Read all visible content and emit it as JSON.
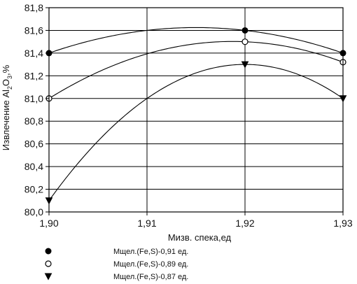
{
  "chart_data": {
    "type": "line",
    "x": [
      1.9,
      1.92,
      1.93
    ],
    "xlabel": "Мизв. спека,ед",
    "ylabel_parts": [
      "Извлечение Al",
      "2",
      "O",
      "3",
      ",%"
    ],
    "xlim": [
      1.9,
      1.93
    ],
    "ylim": [
      80.0,
      81.8
    ],
    "x_ticks": [
      "1,90",
      "1,91",
      "1,92",
      "1,93"
    ],
    "y_ticks": [
      "80,0",
      "80,2",
      "80,4",
      "80,6",
      "80,8",
      "81,0",
      "81,2",
      "81,4",
      "81,6",
      "81,8"
    ],
    "grid": true,
    "legend_position": "bottom-left",
    "series": [
      {
        "name": "Мщел.(Fe,S)-0,91 ед.",
        "marker": "circle-filled",
        "values": [
          81.4,
          81.6,
          81.4
        ]
      },
      {
        "name": "Мщел.(Fe,S)-0,89 ед.",
        "marker": "circle-open",
        "values": [
          81.0,
          81.5,
          81.32
        ]
      },
      {
        "name": "Мщел.(Fe,S)-0,87 ед.",
        "marker": "triangle-down-filled",
        "values": [
          80.1,
          81.3,
          81.0
        ]
      }
    ],
    "colors": {
      "line": "#000000",
      "grid": "#000000",
      "text": "#111111"
    }
  }
}
